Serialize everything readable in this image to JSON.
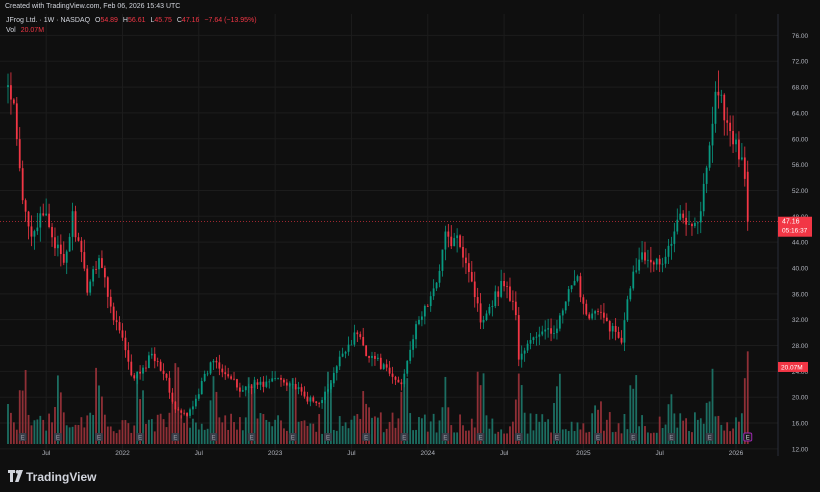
{
  "header": {
    "created_text": "Created with TradingView.com, Feb 06, 2026 15:43 UTC"
  },
  "legend": {
    "title": "JFrog Ltd. · 1W · NASDAQ",
    "open_label": "O",
    "open": "54.89",
    "high_label": "H",
    "high": "56.61",
    "low_label": "L",
    "low": "45.75",
    "close_label": "C",
    "close": "47.16",
    "change": "−7.64 (−13.95%)",
    "vol_label": "Vol",
    "vol_value": "20.07M"
  },
  "price_tag": {
    "price": "47.16",
    "countdown": "05:16:37"
  },
  "volume_tag": "20.07M",
  "branding": {
    "name": "TradingView"
  },
  "colors": {
    "background": "#0f0f0f",
    "up": "#089981",
    "down": "#f23645",
    "up_volume": "#1c6e62",
    "down_volume": "#8f2f36",
    "grid": "#1c1c1c",
    "earnings_badge": "#3b3f4a",
    "earnings_badge_active": "#9c27b0"
  },
  "chart_data": {
    "type": "candlestick",
    "symbol": "JFrog Ltd.",
    "interval": "1W",
    "exchange": "NASDAQ",
    "y_ticks": [
      "76.00",
      "72.00",
      "68.00",
      "64.00",
      "60.00",
      "56.00",
      "52.00",
      "48.00",
      "44.00",
      "40.00",
      "36.00",
      "32.00",
      "28.00",
      "24.00",
      "20.00",
      "16.00",
      "12.00"
    ],
    "x_ticks": [
      "Jul",
      "2022",
      "Jul",
      "2023",
      "Jul",
      "2024",
      "Jul",
      "2025",
      "Jul",
      "2026"
    ],
    "ylim": [
      10.9,
      79.0
    ],
    "last_price": 47.16,
    "anchors": [
      {
        "date": "2021-04-05",
        "price": 68
      },
      {
        "date": "2021-04-19",
        "price": 64
      },
      {
        "date": "2021-05-10",
        "price": 50
      },
      {
        "date": "2021-05-31",
        "price": 46
      },
      {
        "date": "2021-07-05",
        "price": 48
      },
      {
        "date": "2021-08-16",
        "price": 40
      },
      {
        "date": "2021-09-06",
        "price": 48
      },
      {
        "date": "2021-10-11",
        "price": 37
      },
      {
        "date": "2021-11-08",
        "price": 42
      },
      {
        "date": "2021-12-06",
        "price": 34
      },
      {
        "date": "2022-01-03",
        "price": 29
      },
      {
        "date": "2022-01-24",
        "price": 23
      },
      {
        "date": "2022-02-21",
        "price": 24
      },
      {
        "date": "2022-03-14",
        "price": 27
      },
      {
        "date": "2022-04-11",
        "price": 24
      },
      {
        "date": "2022-05-09",
        "price": 18
      },
      {
        "date": "2022-06-06",
        "price": 17
      },
      {
        "date": "2022-07-04",
        "price": 21
      },
      {
        "date": "2022-08-08",
        "price": 26
      },
      {
        "date": "2022-09-05",
        "price": 24
      },
      {
        "date": "2022-10-10",
        "price": 21
      },
      {
        "date": "2022-11-07",
        "price": 22
      },
      {
        "date": "2022-12-05",
        "price": 22
      },
      {
        "date": "2023-01-09",
        "price": 23
      },
      {
        "date": "2023-02-13",
        "price": 22
      },
      {
        "date": "2023-03-13",
        "price": 20
      },
      {
        "date": "2023-04-10",
        "price": 19
      },
      {
        "date": "2023-05-08",
        "price": 21
      },
      {
        "date": "2023-06-12",
        "price": 27
      },
      {
        "date": "2023-07-17",
        "price": 30
      },
      {
        "date": "2023-08-07",
        "price": 27
      },
      {
        "date": "2023-08-28",
        "price": 26
      },
      {
        "date": "2023-10-09",
        "price": 23
      },
      {
        "date": "2023-10-30",
        "price": 22
      },
      {
        "date": "2023-11-20",
        "price": 28
      },
      {
        "date": "2023-12-18",
        "price": 33
      },
      {
        "date": "2024-01-15",
        "price": 36
      },
      {
        "date": "2024-02-12",
        "price": 45
      },
      {
        "date": "2024-02-26",
        "price": 44
      },
      {
        "date": "2024-03-18",
        "price": 44
      },
      {
        "date": "2024-04-08",
        "price": 40
      },
      {
        "date": "2024-05-06",
        "price": 32
      },
      {
        "date": "2024-06-03",
        "price": 35
      },
      {
        "date": "2024-07-01",
        "price": 38
      },
      {
        "date": "2024-07-29",
        "price": 33
      },
      {
        "date": "2024-08-05",
        "price": 26
      },
      {
        "date": "2024-08-26",
        "price": 28
      },
      {
        "date": "2024-09-23",
        "price": 30
      },
      {
        "date": "2024-10-21",
        "price": 30
      },
      {
        "date": "2024-11-11",
        "price": 32
      },
      {
        "date": "2024-12-02",
        "price": 36
      },
      {
        "date": "2024-12-23",
        "price": 38
      },
      {
        "date": "2025-01-13",
        "price": 33
      },
      {
        "date": "2025-02-10",
        "price": 33
      },
      {
        "date": "2025-03-10",
        "price": 31
      },
      {
        "date": "2025-04-07",
        "price": 29
      },
      {
        "date": "2025-04-21",
        "price": 36
      },
      {
        "date": "2025-05-19",
        "price": 42
      },
      {
        "date": "2025-06-16",
        "price": 42
      },
      {
        "date": "2025-07-07",
        "price": 40
      },
      {
        "date": "2025-08-04",
        "price": 44
      },
      {
        "date": "2025-08-25",
        "price": 48
      },
      {
        "date": "2025-09-15",
        "price": 48
      },
      {
        "date": "2025-10-06",
        "price": 47
      },
      {
        "date": "2025-10-27",
        "price": 55
      },
      {
        "date": "2025-11-17",
        "price": 68
      },
      {
        "date": "2025-12-01",
        "price": 66
      },
      {
        "date": "2025-12-22",
        "price": 60
      },
      {
        "date": "2026-01-12",
        "price": 58
      },
      {
        "date": "2026-01-26",
        "price": 55
      },
      {
        "date": "2026-02-02",
        "price": 47.16
      }
    ],
    "earnings_dates": [
      "2021-05-10",
      "2021-08-02",
      "2021-11-08",
      "2022-02-14",
      "2022-05-09",
      "2022-08-08",
      "2022-11-07",
      "2023-02-13",
      "2023-05-08",
      "2023-08-07",
      "2023-11-06",
      "2024-02-12",
      "2024-05-06",
      "2024-08-05",
      "2024-11-04",
      "2025-02-10",
      "2025-05-05",
      "2025-08-04",
      "2025-11-03",
      "2026-02-02"
    ]
  }
}
